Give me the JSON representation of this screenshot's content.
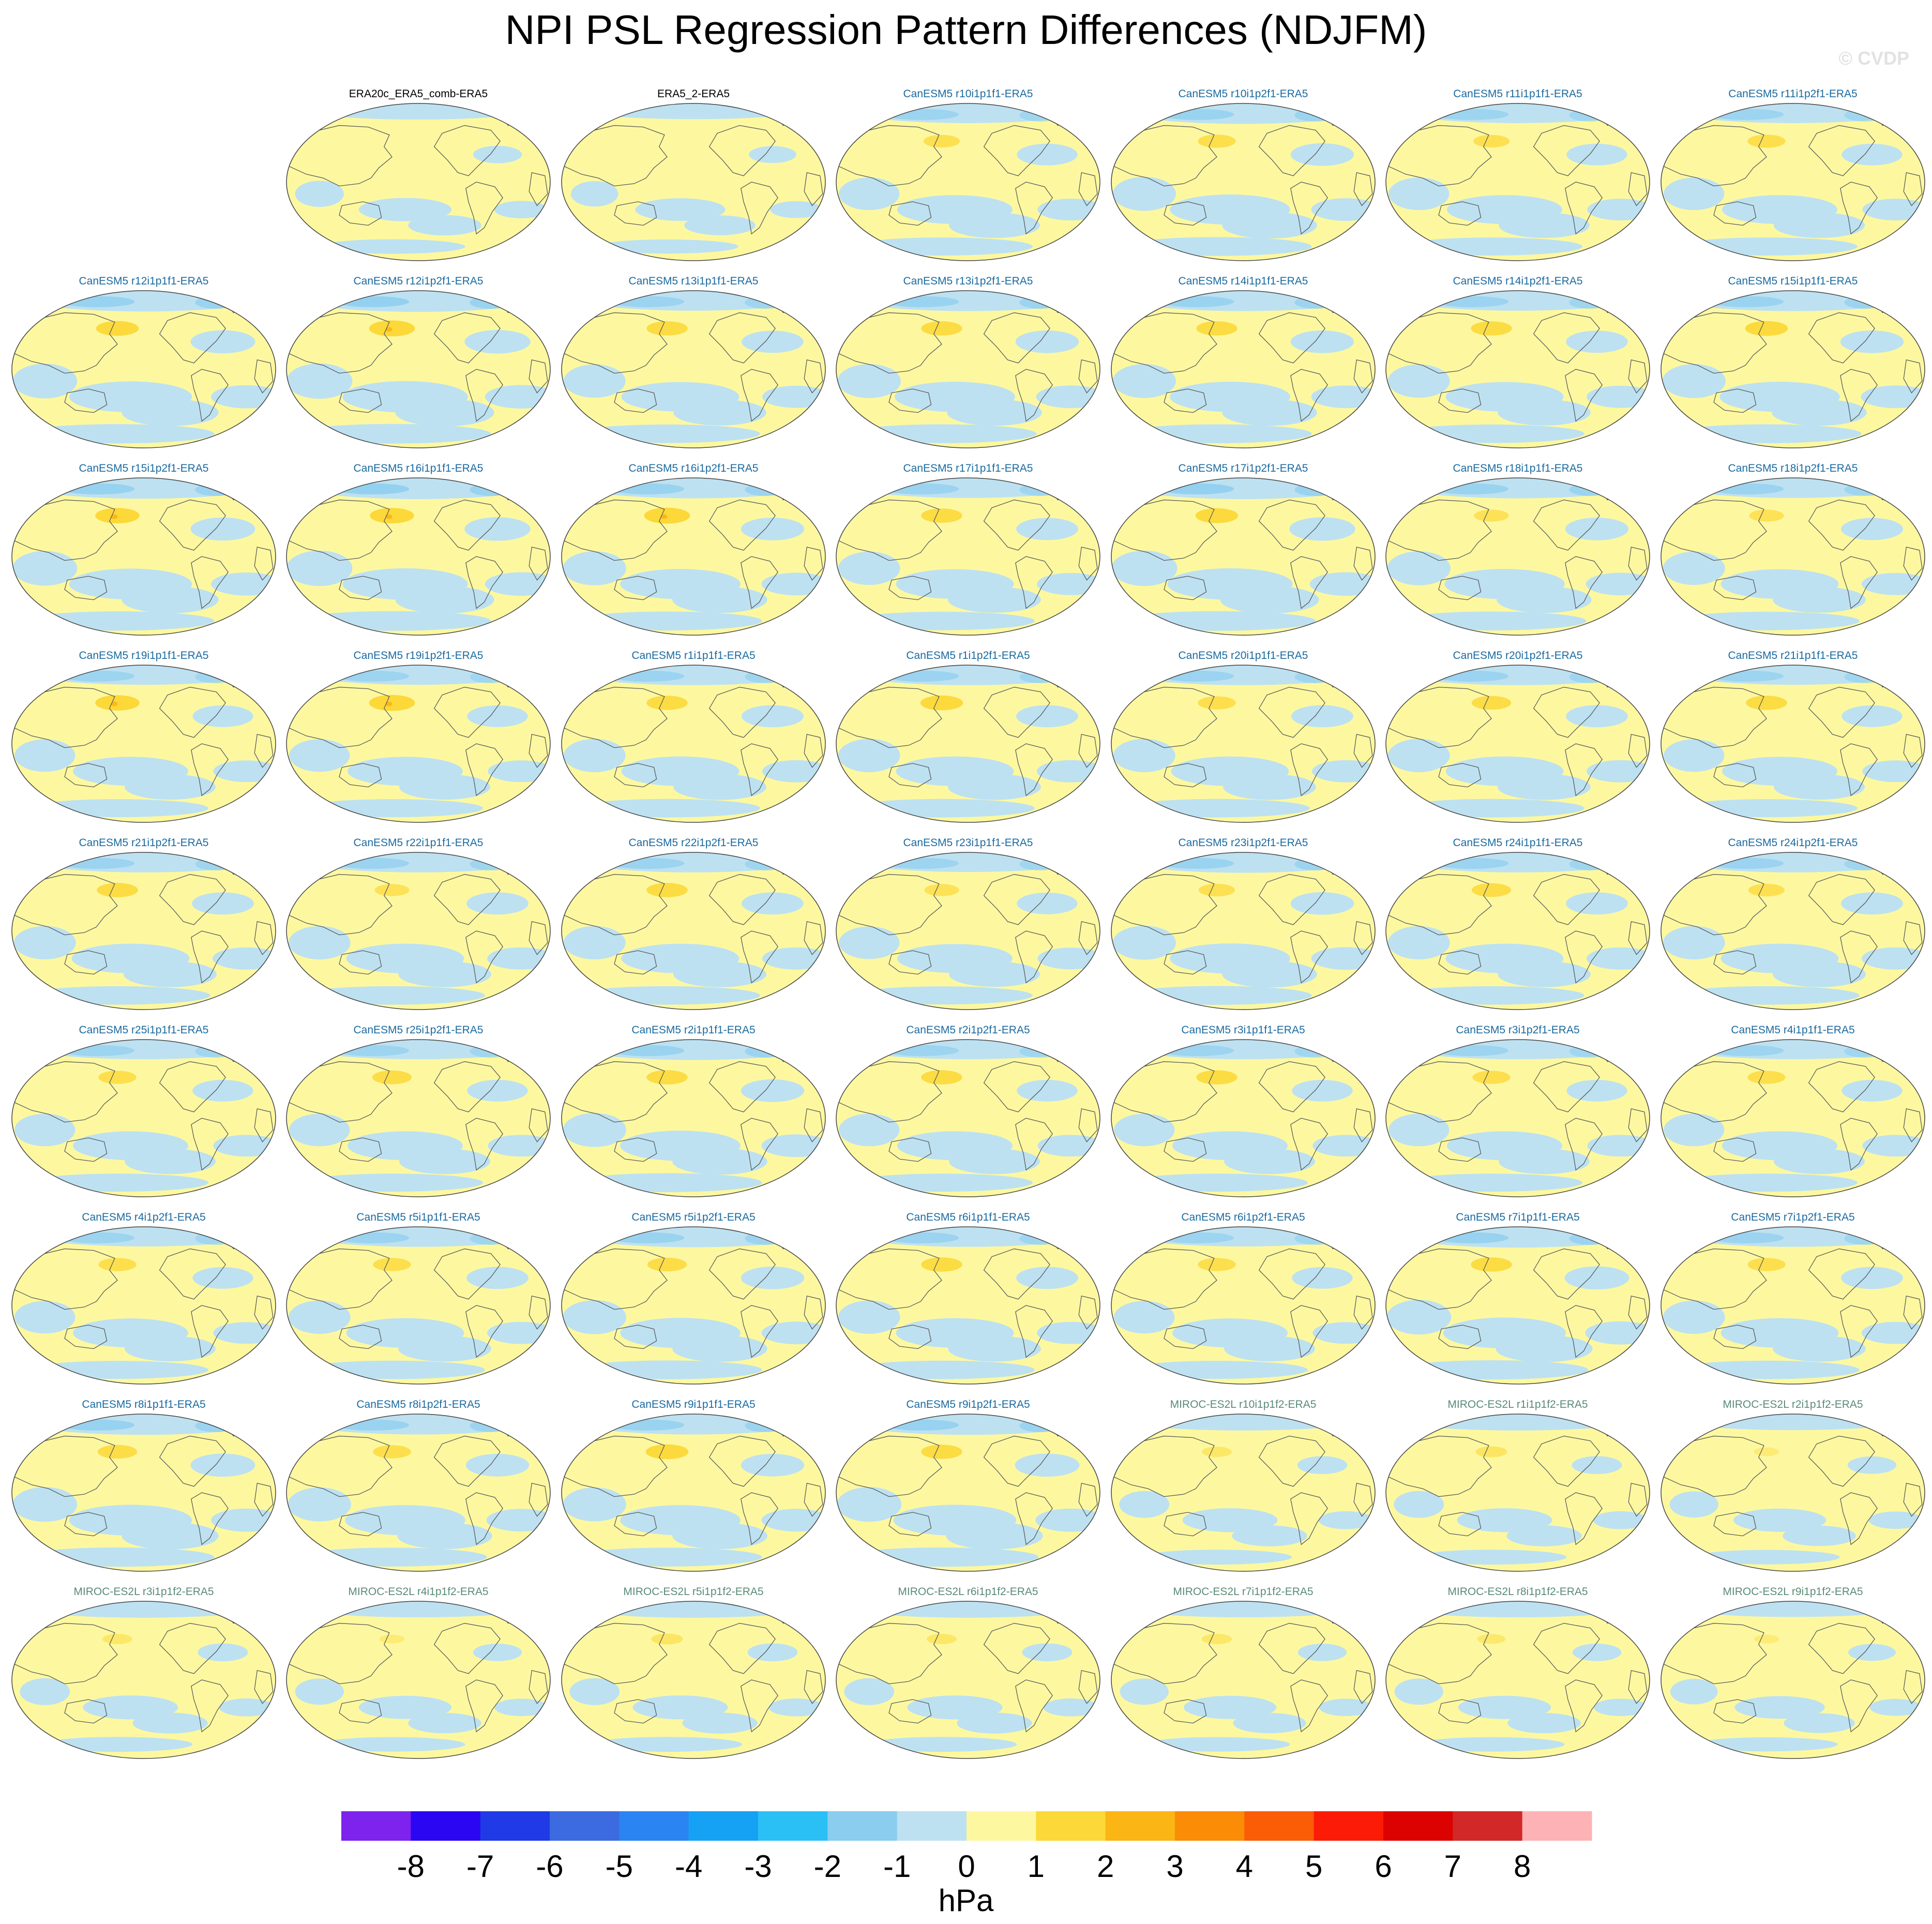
{
  "title": "NPI PSL Regression Pattern Differences (NDJFM)",
  "watermark": "© CVDP",
  "colors": {
    "obs_label": "#000000",
    "canesm_label": "#1a6aa0",
    "miroc_label": "#5a8a76",
    "ocean_negative": "#bde1f1",
    "land_positive": "#fdf8a0",
    "coastline": "#5a5a5a"
  },
  "chart_data": {
    "type": "map-panels",
    "projection": "global map, Pacific-centered",
    "variable": "PSL regression pattern difference",
    "season": "NDJFM",
    "panels": [
      {
        "label": "ERA20c_ERA5_comb-ERA5",
        "group": "obs",
        "pos_strength": 0.0,
        "neg_strength": 0.25
      },
      {
        "label": "ERA5_2-ERA5",
        "group": "obs",
        "pos_strength": 0.0,
        "neg_strength": 0.2
      },
      {
        "label": "CanESM5 r10i1p1f1-ERA5",
        "group": "canesm",
        "pos_strength": 0.55,
        "neg_strength": 0.7
      },
      {
        "label": "CanESM5 r10i1p2f1-ERA5",
        "group": "canesm",
        "pos_strength": 0.6,
        "neg_strength": 0.8
      },
      {
        "label": "CanESM5 r11i1p1f1-ERA5",
        "group": "canesm",
        "pos_strength": 0.55,
        "neg_strength": 0.7
      },
      {
        "label": "CanESM5 r11i1p2f1-ERA5",
        "group": "canesm",
        "pos_strength": 0.6,
        "neg_strength": 0.7
      },
      {
        "label": "CanESM5 r12i1p1f1-ERA5",
        "group": "canesm",
        "pos_strength": 0.75,
        "neg_strength": 0.85
      },
      {
        "label": "CanESM5 r12i1p2f1-ERA5",
        "group": "canesm",
        "pos_strength": 0.85,
        "neg_strength": 0.9
      },
      {
        "label": "CanESM5 r13i1p1f1-ERA5",
        "group": "canesm",
        "pos_strength": 0.7,
        "neg_strength": 0.75
      },
      {
        "label": "CanESM5 r13i1p2f1-ERA5",
        "group": "canesm",
        "pos_strength": 0.7,
        "neg_strength": 0.8
      },
      {
        "label": "CanESM5 r14i1p1f1-ERA5",
        "group": "canesm",
        "pos_strength": 0.7,
        "neg_strength": 0.8
      },
      {
        "label": "CanESM5 r14i1p2f1-ERA5",
        "group": "canesm",
        "pos_strength": 0.7,
        "neg_strength": 0.75
      },
      {
        "label": "CanESM5 r15i1p1f1-ERA5",
        "group": "canesm",
        "pos_strength": 0.75,
        "neg_strength": 0.8
      },
      {
        "label": "CanESM5 r15i1p2f1-ERA5",
        "group": "canesm",
        "pos_strength": 0.8,
        "neg_strength": 0.85
      },
      {
        "label": "CanESM5 r16i1p1f1-ERA5",
        "group": "canesm",
        "pos_strength": 0.8,
        "neg_strength": 0.9
      },
      {
        "label": "CanESM5 r16i1p2f1-ERA5",
        "group": "canesm",
        "pos_strength": 0.85,
        "neg_strength": 0.8
      },
      {
        "label": "CanESM5 r17i1p1f1-ERA5",
        "group": "canesm",
        "pos_strength": 0.7,
        "neg_strength": 0.75
      },
      {
        "label": "CanESM5 r17i1p2f1-ERA5",
        "group": "canesm",
        "pos_strength": 0.75,
        "neg_strength": 0.9
      },
      {
        "label": "CanESM5 r18i1p1f1-ERA5",
        "group": "canesm",
        "pos_strength": 0.5,
        "neg_strength": 0.8
      },
      {
        "label": "CanESM5 r18i1p2f1-ERA5",
        "group": "canesm",
        "pos_strength": 0.5,
        "neg_strength": 0.75
      },
      {
        "label": "CanESM5 r19i1p1f1-ERA5",
        "group": "canesm",
        "pos_strength": 0.8,
        "neg_strength": 0.7
      },
      {
        "label": "CanESM5 r19i1p2f1-ERA5",
        "group": "canesm",
        "pos_strength": 0.85,
        "neg_strength": 0.7
      },
      {
        "label": "CanESM5 r1i1p1f1-ERA5",
        "group": "canesm",
        "pos_strength": 0.7,
        "neg_strength": 0.75
      },
      {
        "label": "CanESM5 r1i1p2f1-ERA5",
        "group": "canesm",
        "pos_strength": 0.75,
        "neg_strength": 0.75
      },
      {
        "label": "CanESM5 r20i1p1f1-ERA5",
        "group": "canesm",
        "pos_strength": 0.6,
        "neg_strength": 0.75
      },
      {
        "label": "CanESM5 r20i1p2f1-ERA5",
        "group": "canesm",
        "pos_strength": 0.65,
        "neg_strength": 0.75
      },
      {
        "label": "CanESM5 r21i1p1f1-ERA5",
        "group": "canesm",
        "pos_strength": 0.7,
        "neg_strength": 0.7
      },
      {
        "label": "CanESM5 r21i1p2f1-ERA5",
        "group": "canesm",
        "pos_strength": 0.7,
        "neg_strength": 0.75
      },
      {
        "label": "CanESM5 r22i1p1f1-ERA5",
        "group": "canesm",
        "pos_strength": 0.5,
        "neg_strength": 0.75
      },
      {
        "label": "CanESM5 r22i1p2f1-ERA5",
        "group": "canesm",
        "pos_strength": 0.7,
        "neg_strength": 0.75
      },
      {
        "label": "CanESM5 r23i1p1f1-ERA5",
        "group": "canesm",
        "pos_strength": 0.5,
        "neg_strength": 0.7
      },
      {
        "label": "CanESM5 r23i1p2f1-ERA5",
        "group": "canesm",
        "pos_strength": 0.55,
        "neg_strength": 0.8
      },
      {
        "label": "CanESM5 r24i1p1f1-ERA5",
        "group": "canesm",
        "pos_strength": 0.65,
        "neg_strength": 0.75
      },
      {
        "label": "CanESM5 r24i1p2f1-ERA5",
        "group": "canesm",
        "pos_strength": 0.55,
        "neg_strength": 0.75
      },
      {
        "label": "CanESM5 r25i1p1f1-ERA5",
        "group": "canesm",
        "pos_strength": 0.6,
        "neg_strength": 0.7
      },
      {
        "label": "CanESM5 r25i1p2f1-ERA5",
        "group": "canesm",
        "pos_strength": 0.65,
        "neg_strength": 0.7
      },
      {
        "label": "CanESM5 r2i1p1f1-ERA5",
        "group": "canesm",
        "pos_strength": 0.7,
        "neg_strength": 0.8
      },
      {
        "label": "CanESM5 r2i1p2f1-ERA5",
        "group": "canesm",
        "pos_strength": 0.7,
        "neg_strength": 0.7
      },
      {
        "label": "CanESM5 r3i1p1f1-ERA5",
        "group": "canesm",
        "pos_strength": 0.7,
        "neg_strength": 0.7
      },
      {
        "label": "CanESM5 r3i1p2f1-ERA5",
        "group": "canesm",
        "pos_strength": 0.6,
        "neg_strength": 0.7
      },
      {
        "label": "CanESM5 r4i1p1f1-ERA5",
        "group": "canesm",
        "pos_strength": 0.6,
        "neg_strength": 0.7
      },
      {
        "label": "CanESM5 r4i1p2f1-ERA5",
        "group": "canesm",
        "pos_strength": 0.6,
        "neg_strength": 0.7
      },
      {
        "label": "CanESM5 r5i1p1f1-ERA5",
        "group": "canesm",
        "pos_strength": 0.6,
        "neg_strength": 0.75
      },
      {
        "label": "CanESM5 r5i1p2f1-ERA5",
        "group": "canesm",
        "pos_strength": 0.65,
        "neg_strength": 0.8
      },
      {
        "label": "CanESM5 r6i1p1f1-ERA5",
        "group": "canesm",
        "pos_strength": 0.7,
        "neg_strength": 0.75
      },
      {
        "label": "CanESM5 r6i1p2f1-ERA5",
        "group": "canesm",
        "pos_strength": 0.6,
        "neg_strength": 0.7
      },
      {
        "label": "CanESM5 r7i1p1f1-ERA5",
        "group": "canesm",
        "pos_strength": 0.7,
        "neg_strength": 0.85
      },
      {
        "label": "CanESM5 r7i1p2f1-ERA5",
        "group": "canesm",
        "pos_strength": 0.6,
        "neg_strength": 0.75
      },
      {
        "label": "CanESM5 r8i1p1f1-ERA5",
        "group": "canesm",
        "pos_strength": 0.65,
        "neg_strength": 0.85
      },
      {
        "label": "CanESM5 r8i1p2f1-ERA5",
        "group": "canesm",
        "pos_strength": 0.6,
        "neg_strength": 0.8
      },
      {
        "label": "CanESM5 r9i1p1f1-ERA5",
        "group": "canesm",
        "pos_strength": 0.75,
        "neg_strength": 0.8
      },
      {
        "label": "CanESM5 r9i1p2f1-ERA5",
        "group": "canesm",
        "pos_strength": 0.7,
        "neg_strength": 0.85
      },
      {
        "label": "MIROC-ES2L r10i1p1f2-ERA5",
        "group": "miroc",
        "pos_strength": 0.35,
        "neg_strength": 0.3
      },
      {
        "label": "MIROC-ES2L r1i1p1f2-ERA5",
        "group": "miroc",
        "pos_strength": 0.4,
        "neg_strength": 0.3
      },
      {
        "label": "MIROC-ES2L r2i1p1f2-ERA5",
        "group": "miroc",
        "pos_strength": 0.2,
        "neg_strength": 0.25
      },
      {
        "label": "MIROC-ES2L r3i1p1f2-ERA5",
        "group": "miroc",
        "pos_strength": 0.35,
        "neg_strength": 0.3
      },
      {
        "label": "MIROC-ES2L r4i1p1f2-ERA5",
        "group": "miroc",
        "pos_strength": 0.2,
        "neg_strength": 0.25
      },
      {
        "label": "MIROC-ES2L r5i1p1f2-ERA5",
        "group": "miroc",
        "pos_strength": 0.4,
        "neg_strength": 0.3
      },
      {
        "label": "MIROC-ES2L r6i1p1f2-ERA5",
        "group": "miroc",
        "pos_strength": 0.35,
        "neg_strength": 0.3
      },
      {
        "label": "MIROC-ES2L r7i1p1f2-ERA5",
        "group": "miroc",
        "pos_strength": 0.35,
        "neg_strength": 0.25
      },
      {
        "label": "MIROC-ES2L r8i1p1f2-ERA5",
        "group": "miroc",
        "pos_strength": 0.3,
        "neg_strength": 0.25
      },
      {
        "label": "MIROC-ES2L r9i1p1f2-ERA5",
        "group": "miroc",
        "pos_strength": 0.2,
        "neg_strength": 0.2
      }
    ],
    "colorbar": {
      "unit": "hPa",
      "levels": [
        -8,
        -7,
        -6,
        -5,
        -4,
        -3,
        -2,
        -1,
        0,
        1,
        2,
        3,
        4,
        5,
        6,
        7,
        8
      ],
      "colors": [
        "#7e22ee",
        "#2b06f2",
        "#1f3ae6",
        "#3c6ae0",
        "#2a84f2",
        "#15a2f5",
        "#2ac0f5",
        "#8acdef",
        "#bde1f1",
        "#fdf8a0",
        "#fcd838",
        "#fbb514",
        "#fb8c06",
        "#fb5c06",
        "#fc1b06",
        "#dc0202",
        "#d22828",
        "#fdb3b5"
      ]
    }
  }
}
